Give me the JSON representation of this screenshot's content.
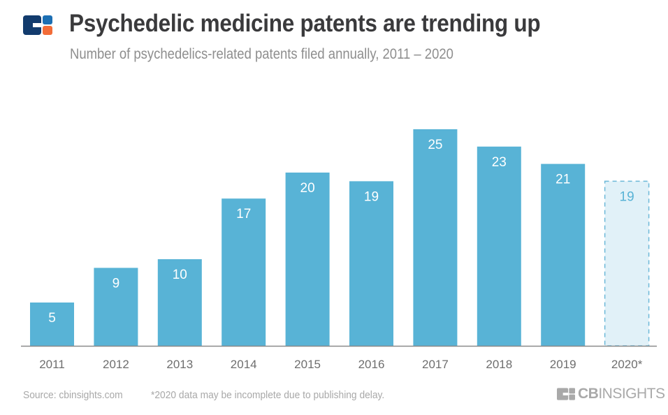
{
  "header": {
    "title": "Psychedelic medicine patents are trending up",
    "subtitle": "Number of psychedelics-related patents filed annually, 2011 – 2020",
    "logo_icon": "cb-insights-logo-icon"
  },
  "footer": {
    "source": "Source: cbinsights.com",
    "note": "*2020 data may be incomplete due to publishing delay.",
    "brand_bold": "CB",
    "brand_light": "INSIGHTS"
  },
  "colors": {
    "bar": "#58b3d6",
    "bar_incomplete_fill": "#e1f1f8",
    "bar_incomplete_stroke": "#6cb8d8",
    "label_on_bar": "#ffffff",
    "label_incomplete": "#58b3d6",
    "axis": "#8a8a8a",
    "tick_text": "#6e6e6e",
    "logo_navy": "#123b6d",
    "logo_blue": "#1c6fb3",
    "logo_orange": "#f26c38"
  },
  "chart_data": {
    "type": "bar",
    "title": "Psychedelic medicine patents are trending up",
    "subtitle": "Number of psychedelics-related patents filed annually, 2011 – 2020",
    "xlabel": "",
    "ylabel": "",
    "categories": [
      "2011",
      "2012",
      "2013",
      "2014",
      "2015",
      "2016",
      "2017",
      "2018",
      "2019",
      "2020*"
    ],
    "values": [
      5,
      9,
      10,
      17,
      20,
      19,
      25,
      23,
      21,
      19
    ],
    "incomplete": [
      false,
      false,
      false,
      false,
      false,
      false,
      false,
      false,
      false,
      true
    ],
    "ylim": [
      0,
      25
    ],
    "grid": false,
    "legend": "none",
    "data_labels": true
  }
}
